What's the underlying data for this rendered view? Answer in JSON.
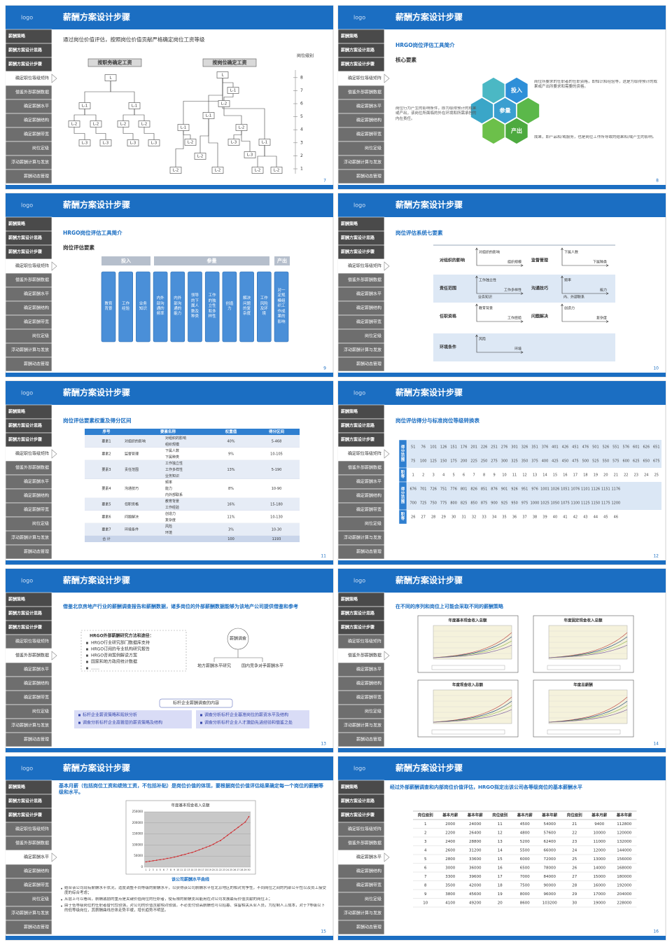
{
  "logo": "logo",
  "header_title": "薪酬方案设计步骤",
  "menu": [
    "薪酬策略",
    "薪酬方案设计思路",
    "薪酬方案设计步骤",
    "确定职位等级矩阵",
    "借鉴外部薪酬数据",
    "确定薪酬水平",
    "确定薪酬结构",
    "确定薪酬带宽",
    "岗位定级",
    "浮动薪酬计算与发放",
    "薪酬动态管理"
  ],
  "slides": [
    {
      "page": 7,
      "active": 3,
      "kind": "trees",
      "intro": "通过岗位价值评估，按照岗位价值贡献严格确定岗位工资等级",
      "left_label": "按职务确定工资",
      "right_label": "按岗位确定工资",
      "axis_label": "岗位级别",
      "levels": [
        1,
        2,
        3,
        4,
        5,
        6,
        7,
        8
      ],
      "left_nodes": [
        "L",
        "L-1",
        "L-1",
        "L-2",
        "L-2",
        "L-2",
        "L-2",
        "L-3",
        "L-3",
        "L-3",
        "L-3"
      ],
      "right_nodes": [
        "L",
        "L-1",
        "L-2",
        "L-1",
        "L-2",
        "L-1",
        "L-3",
        "L-1",
        "L-2",
        "L-2",
        "L-3",
        "L-2",
        "L-2",
        "L-2",
        "L-2"
      ]
    },
    {
      "page": 8,
      "active": 3,
      "kind": "hex",
      "title": "HRGO岗位评估工具简介",
      "subtitle": "核心要素",
      "hex_labels": [
        "投入",
        "参量",
        "产出"
      ],
      "descriptions": [
        "岗位所要求的任职者的任职资格，即知识和经验等，这是为取得预计的成果或产出所要求和需要的资格。",
        "岗位行为产生的影响条件，即为取得预计的成果或产出，该岗位所面临的外在环境和所需承担的内在责任。",
        "成果，即产品和/或服务，也是岗位工作所导致的结果和/或产生的影响。"
      ]
    },
    {
      "page": 9,
      "active": 3,
      "kind": "cols",
      "title": "HRGO岗位评估工具简介",
      "subtitle": "岗位评估要素",
      "groups": [
        "投入",
        "参量",
        "产出"
      ],
      "columns": [
        "教育背景",
        "工作经验",
        "业务知识",
        "内外部沟通的频率",
        "内外部沟通的能力",
        "领导的下属人数及种类",
        "工作的独立性和多样性",
        "创造力",
        "解决问题的复杂度",
        "工作风险及环境",
        "对一定规模组织工作成果的影响"
      ]
    },
    {
      "page": 10,
      "active": 3,
      "kind": "factors",
      "title": "岗位评估系统七要素",
      "factors": [
        {
          "name": "对组织的影响",
          "labels": [
            "对组织的影响",
            "组织规模"
          ]
        },
        {
          "name": "监督管理",
          "labels": [
            "下属人数",
            "下属种类"
          ]
        },
        {
          "name": "责任范围",
          "labels": [
            "工作独立性",
            "工作多样性",
            "业务知识"
          ]
        },
        {
          "name": "沟通技巧",
          "labels": [
            "频率",
            "能力",
            "内、外部联系"
          ]
        },
        {
          "name": "任职资格",
          "labels": [
            "教育背景",
            "工作经验"
          ]
        },
        {
          "name": "问题解决",
          "labels": [
            "创造力",
            "复杂度"
          ]
        },
        {
          "name": "环境条件",
          "labels": [
            "风险",
            "环境"
          ]
        }
      ]
    },
    {
      "page": 11,
      "active": 3,
      "kind": "weights",
      "title": "岗位评估要素权重及得分区间",
      "header": [
        "序号",
        "要素名称",
        "权重值",
        "得分区间"
      ],
      "rows": [
        {
          "code": "要素1",
          "name": "对组织的影响",
          "items": [
            "对组织的影响",
            "组织规模"
          ],
          "weight": "40%",
          "range": "5-468"
        },
        {
          "code": "要素2",
          "name": "监督管理",
          "items": [
            "下属人数",
            "下属种类"
          ],
          "weight": "9%",
          "range": "10-105"
        },
        {
          "code": "要素3",
          "name": "责任范围",
          "items": [
            "工作独立性",
            "工作多样性",
            "业务知识"
          ],
          "weight": "13%",
          "range": "5-190"
        },
        {
          "code": "要素4",
          "name": "沟通技巧",
          "items": [
            "频率",
            "能力",
            "内外部联系"
          ],
          "weight": "8%",
          "range": "10-90"
        },
        {
          "code": "要素5",
          "name": "任职资格",
          "items": [
            "教育背景",
            "工作经验"
          ],
          "weight": "16%",
          "range": "15-180"
        },
        {
          "code": "要素6",
          "name": "问题解决",
          "items": [
            "创造力",
            "复杂度"
          ],
          "weight": "11%",
          "range": "10-130"
        },
        {
          "code": "要素7",
          "name": "环境条件",
          "items": [
            "风险",
            "环境"
          ],
          "weight": "3%",
          "range": "10-30"
        }
      ],
      "total": {
        "label": "合 计",
        "weight": 100,
        "range": 1193
      }
    },
    {
      "page": 12,
      "active": 3,
      "kind": "scores",
      "title": "岗位评估得分与标准岗位等级转换表",
      "blocks": [
        {
          "label": "得分范围",
          "rows": [
            [
              51,
              76,
              101,
              126,
              151,
              176,
              201,
              226,
              251,
              276,
              301,
              326,
              351,
              376,
              401,
              426,
              451,
              476,
              501,
              526,
              551,
              576,
              601,
              626,
              651
            ],
            [
              75,
              100,
              125,
              150,
              175,
              200,
              225,
              250,
              275,
              300,
              325,
              350,
              375,
              400,
              425,
              450,
              475,
              500,
              525,
              550,
              575,
              600,
              625,
              650,
              675
            ]
          ]
        },
        {
          "label": "职等",
          "rows": [
            [
              1,
              2,
              3,
              4,
              5,
              6,
              7,
              8,
              9,
              10,
              11,
              12,
              13,
              14,
              15,
              16,
              17,
              18,
              19,
              20,
              21,
              22,
              23,
              24,
              25
            ]
          ]
        },
        {
          "label": "得分范围",
          "rows": [
            [
              676,
              701,
              726,
              751,
              776,
              801,
              826,
              851,
              876,
              901,
              926,
              951,
              976,
              1001,
              1026,
              1051,
              1076,
              1101,
              1126,
              1151,
              1176
            ],
            [
              700,
              725,
              750,
              775,
              800,
              825,
              850,
              875,
              900,
              925,
              950,
              975,
              1000,
              1025,
              1050,
              1075,
              1100,
              1125,
              1150,
              1175,
              1200
            ]
          ]
        },
        {
          "label": "职等",
          "rows": [
            [
              26,
              27,
              28,
              29,
              30,
              31,
              32,
              33,
              34,
              35,
              36,
              37,
              38,
              39,
              40,
              41,
              42,
              43,
              44,
              45,
              46
            ]
          ]
        }
      ]
    },
    {
      "page": 13,
      "active": 4,
      "kind": "survey",
      "intro": "借鉴北京房地产行业的薪酬调查报告和薪酬数据，诸多岗位的外部薪酬数据能够为该地产公司提供借鉴和参考",
      "method_title": "HRGO外部薪酬研究方法和途径：",
      "methods": [
        "HRGO行业研究部门数据库支持",
        "HRGO订阅的专业机构研究报告",
        "HRGO咨询案例解读方案",
        "国家和地方政府统计数据",
        "……"
      ],
      "center": "薪酬调查",
      "branches": [
        "地方薪酬水平研究",
        "国内竞争对手薪酬水平"
      ],
      "content_title": "标杆企业薪酬调查的内容",
      "bullets": [
        "标杆企业薪资策略和现状分析",
        "调查分析标杆企业高管层的薪资策略及结构",
        "调查分析标杆企业基准岗位的薪资水平及结构",
        "调查分析标杆企业人才激励先进经验和借鉴之处"
      ]
    },
    {
      "page": 14,
      "active": 4,
      "kind": "charts4",
      "intro": "在不同的序列和岗位上可能会采取不同的薪酬策略",
      "chart_titles": [
        "年度基本现金收入总额",
        "年度固定现金收入总额",
        "年度现金收入总额",
        "年度总薪酬"
      ]
    },
    {
      "page": 15,
      "active": 5,
      "kind": "curve",
      "intro": "基本月薪（包括岗位工资和绩效工资，不包括补贴）是岗位价值的体现，要根据岗位价值评估结果确定每一个岗位的薪酬等级和水平。",
      "chart": {
        "type": "line",
        "title": "年度基本现金收入总额",
        "categories": [
          1,
          2,
          3,
          4,
          5,
          6,
          7,
          8,
          9,
          10,
          11,
          12,
          13,
          14,
          15,
          16,
          17,
          18,
          19,
          20,
          21,
          22,
          23,
          24,
          25,
          26,
          27,
          28,
          29,
          30
        ],
        "values": [
          24000,
          26400,
          28800,
          31200,
          33600,
          36000,
          39600,
          42000,
          45600,
          49200,
          54000,
          57600,
          62400,
          66000,
          72000,
          78000,
          84000,
          90000,
          96000,
          103200,
          112800,
          120000,
          132000,
          144000,
          156000,
          168000,
          180000,
          192000,
          204000,
          228000
        ],
        "color": "#d0262a",
        "ylim": [
          0,
          250000
        ],
        "yticks": [
          0,
          50000,
          100000,
          150000,
          200000,
          250000
        ]
      },
      "caption": "该公司薪酬水平曲线",
      "bullets": [
        "结合该公司现有薪酬水平状况，适度调整不同等级的薪酬水平，以获得该公司薪酬水平在北京地区的相对竞争性，不同岗位之间的内部公平性以及员工接受度的综合考虑；",
        "从层上可以看出，薪酬激励的重点是关键价值岗位的任职者，使有限的薪酬支出能用在对公司发展最有价值贡献的岗位上；",
        "由于低等级岗位的任职者替代性较强，对公司的价值贡献相对较弱，不必支付较高薪酬也可以招募、保留相关从业人员，为控制人工成本，对于7等级以下的低等级岗位，其薪酬曲线总体走势平缓，增长趋势不明显。"
      ]
    },
    {
      "page": 16,
      "active": 5,
      "kind": "salary",
      "intro": "经过外部薪酬调查和内部岗位价值评估，HRGO拟定出该公司各等级岗位的基本薪酬水平",
      "header": [
        "岗位级别",
        "基本月薪",
        "基本年薪",
        "岗位级别",
        "基本月薪",
        "基本年薪",
        "岗位级别",
        "基本月薪",
        "基本年薪"
      ],
      "rows": [
        [
          1,
          2000,
          24000,
          11,
          4500,
          54000,
          21,
          9400,
          112800
        ],
        [
          2,
          2200,
          26400,
          12,
          4800,
          57600,
          22,
          10000,
          120000
        ],
        [
          3,
          2400,
          28800,
          13,
          5200,
          62400,
          23,
          11000,
          132000
        ],
        [
          4,
          2600,
          31200,
          14,
          5500,
          66000,
          24,
          12000,
          144000
        ],
        [
          5,
          2800,
          33600,
          15,
          6000,
          72000,
          25,
          13000,
          156000
        ],
        [
          6,
          3000,
          36000,
          16,
          6500,
          78000,
          26,
          14000,
          168000
        ],
        [
          7,
          3300,
          39600,
          17,
          7000,
          84000,
          27,
          15000,
          180000
        ],
        [
          8,
          3500,
          42000,
          18,
          7500,
          90000,
          28,
          16000,
          192000
        ],
        [
          9,
          3800,
          45600,
          19,
          8000,
          96000,
          29,
          17000,
          204000
        ],
        [
          10,
          4100,
          49200,
          20,
          8600,
          103200,
          30,
          19000,
          228000
        ]
      ]
    }
  ]
}
